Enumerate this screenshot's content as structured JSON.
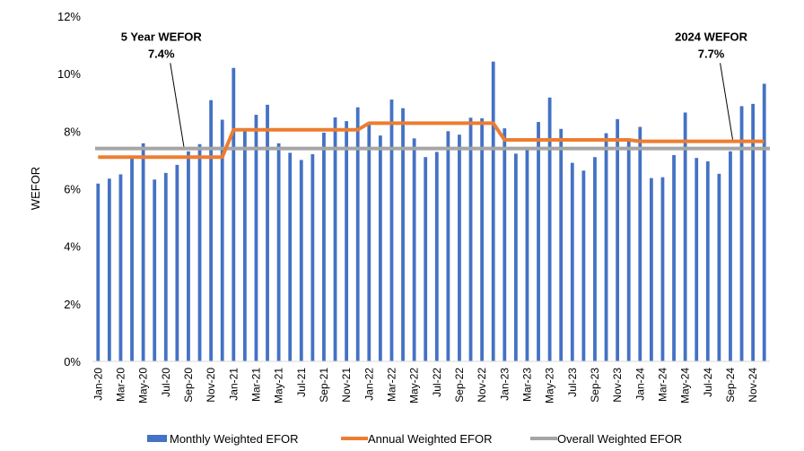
{
  "chart_data": {
    "type": "bar",
    "ylabel": "WEFOR",
    "xlabel": "",
    "ylim": [
      0,
      12
    ],
    "y_ticks": [
      "0%",
      "2%",
      "4%",
      "6%",
      "8%",
      "10%",
      "12%"
    ],
    "grid": false,
    "legend_placement": "bottom",
    "categories": [
      "Jan-20",
      "Feb-20",
      "Mar-20",
      "Apr-20",
      "May-20",
      "Jun-20",
      "Jul-20",
      "Aug-20",
      "Sep-20",
      "Oct-20",
      "Nov-20",
      "Dec-20",
      "Jan-21",
      "Feb-21",
      "Mar-21",
      "Apr-21",
      "May-21",
      "Jun-21",
      "Jul-21",
      "Aug-21",
      "Sep-21",
      "Oct-21",
      "Nov-21",
      "Dec-21",
      "Jan-22",
      "Feb-22",
      "Mar-22",
      "Apr-22",
      "May-22",
      "Jun-22",
      "Jul-22",
      "Aug-22",
      "Sep-22",
      "Oct-22",
      "Nov-22",
      "Dec-22",
      "Jan-23",
      "Feb-23",
      "Mar-23",
      "Apr-23",
      "May-23",
      "Jun-23",
      "Jul-23",
      "Aug-23",
      "Sep-23",
      "Oct-23",
      "Nov-23",
      "Dec-23",
      "Jan-24",
      "Feb-24",
      "Mar-24",
      "Apr-24",
      "May-24",
      "Jun-24",
      "Jul-24",
      "Aug-24",
      "Sep-24",
      "Oct-24",
      "Nov-24",
      "Dec-24"
    ],
    "visible_tick_labels": [
      "Jan-20",
      "Mar-20",
      "May-20",
      "Jul-20",
      "Sep-20",
      "Nov-20",
      "Jan-21",
      "Mar-21",
      "May-21",
      "Jul-21",
      "Sep-21",
      "Nov-21",
      "Jan-22",
      "Mar-22",
      "May-22",
      "Jul-22",
      "Sep-22",
      "Nov-22",
      "Jan-23",
      "Mar-23",
      "May-23",
      "Jul-23",
      "Sep-23",
      "Nov-23",
      "Jan-24",
      "Mar-24",
      "May-24",
      "Jul-24",
      "Sep-24",
      "Nov-24"
    ],
    "series": [
      {
        "name": "Monthly Weighted EFOR",
        "kind": "bar",
        "color": "#4472C4",
        "values": [
          6.18,
          6.35,
          6.5,
          7.05,
          7.58,
          6.32,
          6.55,
          6.83,
          7.3,
          7.55,
          9.08,
          8.4,
          10.2,
          8.05,
          8.57,
          8.92,
          7.58,
          7.25,
          7.0,
          7.2,
          7.95,
          8.48,
          8.35,
          8.83,
          8.25,
          7.85,
          9.1,
          8.8,
          7.75,
          7.1,
          7.28,
          8.0,
          7.88,
          8.47,
          8.45,
          10.42,
          8.1,
          7.22,
          7.42,
          8.32,
          9.17,
          8.08,
          6.9,
          6.63,
          7.1,
          7.93,
          8.42,
          7.65,
          8.15,
          6.37,
          6.4,
          7.17,
          8.65,
          7.07,
          6.95,
          6.52,
          7.3,
          8.87,
          8.95,
          9.65
        ]
      },
      {
        "name": "Annual Weighted EFOR",
        "kind": "line",
        "color": "#ED7D31",
        "values": [
          7.1,
          7.1,
          7.1,
          7.1,
          7.1,
          7.1,
          7.1,
          7.1,
          7.1,
          7.1,
          7.1,
          7.1,
          8.05,
          8.05,
          8.05,
          8.05,
          8.05,
          8.05,
          8.05,
          8.05,
          8.05,
          8.05,
          8.05,
          8.05,
          8.28,
          8.28,
          8.28,
          8.28,
          8.28,
          8.28,
          8.28,
          8.28,
          8.28,
          8.28,
          8.28,
          8.28,
          7.7,
          7.7,
          7.7,
          7.7,
          7.7,
          7.7,
          7.7,
          7.7,
          7.7,
          7.7,
          7.7,
          7.7,
          7.65,
          7.65,
          7.65,
          7.65,
          7.65,
          7.65,
          7.65,
          7.65,
          7.65,
          7.65,
          7.65,
          7.65
        ]
      },
      {
        "name": "Overall Weighted EFOR",
        "kind": "line",
        "color": "#A5A5A5",
        "value": 7.4
      }
    ],
    "annotations": [
      {
        "line1": "5 Year WEFOR",
        "line2": "7.4%",
        "point_index": 7.6,
        "point_value": 7.4,
        "text_index": 5.6,
        "text_value": 11.15
      },
      {
        "line1": "2024 WEFOR",
        "line2": "7.7%",
        "point_index": 56.2,
        "point_value": 7.65,
        "text_index": 54.3,
        "text_value": 11.15
      }
    ]
  }
}
